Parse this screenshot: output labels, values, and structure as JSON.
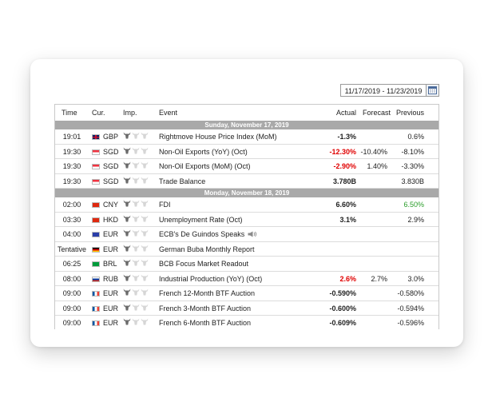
{
  "date_range": "11/17/2019 - 11/23/2019",
  "columns": {
    "time": "Time",
    "currency": "Cur.",
    "importance": "Imp.",
    "event": "Event",
    "actual": "Actual",
    "forecast": "Forecast",
    "previous": "Previous"
  },
  "days": [
    {
      "label": "Sunday, November 17, 2019",
      "rows": [
        {
          "time": "19:01",
          "flag": "gb",
          "currency": "GBP",
          "importance": 1,
          "event": "Rightmove House Price Index (MoM)",
          "actual": "-1.3%",
          "actual_color": "default",
          "forecast": "",
          "previous": "0.6%",
          "previous_color": "default"
        },
        {
          "time": "19:30",
          "flag": "sg",
          "currency": "SGD",
          "importance": 1,
          "event": "Non-Oil Exports (YoY) (Oct)",
          "actual": "-12.30%",
          "actual_color": "red",
          "forecast": "-10.40%",
          "previous": "-8.10%",
          "previous_color": "default"
        },
        {
          "time": "19:30",
          "flag": "sg",
          "currency": "SGD",
          "importance": 1,
          "event": "Non-Oil Exports (MoM) (Oct)",
          "actual": "-2.90%",
          "actual_color": "red",
          "forecast": "1.40%",
          "previous": "-3.30%",
          "previous_color": "default"
        },
        {
          "time": "19:30",
          "flag": "sg",
          "currency": "SGD",
          "importance": 1,
          "event": "Trade Balance",
          "actual": "3.780B",
          "actual_color": "default",
          "forecast": "",
          "previous": "3.830B",
          "previous_color": "default"
        }
      ]
    },
    {
      "label": "Monday, November 18, 2019",
      "rows": [
        {
          "time": "02:00",
          "flag": "cn",
          "currency": "CNY",
          "importance": 1,
          "event": "FDI",
          "actual": "6.60%",
          "actual_color": "default",
          "forecast": "",
          "previous": "6.50%",
          "previous_color": "green"
        },
        {
          "time": "03:30",
          "flag": "hk",
          "currency": "HKD",
          "importance": 1,
          "event": "Unemployment Rate (Oct)",
          "actual": "3.1%",
          "actual_color": "default",
          "forecast": "",
          "previous": "2.9%",
          "previous_color": "default"
        },
        {
          "time": "04:00",
          "flag": "eu",
          "currency": "EUR",
          "importance": 1,
          "event": "ECB's De Guindos Speaks",
          "speaker": true,
          "actual": "",
          "actual_color": "default",
          "forecast": "",
          "previous": "",
          "previous_color": "default"
        },
        {
          "time": "Tentative",
          "flag": "de",
          "currency": "EUR",
          "importance": 1,
          "event": "German Buba Monthly Report",
          "actual": "",
          "actual_color": "default",
          "forecast": "",
          "previous": "",
          "previous_color": "default"
        },
        {
          "time": "06:25",
          "flag": "br",
          "currency": "BRL",
          "importance": 1,
          "event": "BCB Focus Market Readout",
          "actual": "",
          "actual_color": "default",
          "forecast": "",
          "previous": "",
          "previous_color": "default"
        },
        {
          "time": "08:00",
          "flag": "ru",
          "currency": "RUB",
          "importance": 1,
          "event": "Industrial Production (YoY) (Oct)",
          "actual": "2.6%",
          "actual_color": "red",
          "forecast": "2.7%",
          "previous": "3.0%",
          "previous_color": "default"
        },
        {
          "time": "09:00",
          "flag": "fr",
          "currency": "EUR",
          "importance": 1,
          "event": "French 12-Month BTF Auction",
          "actual": "-0.590%",
          "actual_color": "default",
          "forecast": "",
          "previous": "-0.580%",
          "previous_color": "default"
        },
        {
          "time": "09:00",
          "flag": "fr",
          "currency": "EUR",
          "importance": 1,
          "event": "French 3-Month BTF Auction",
          "actual": "-0.600%",
          "actual_color": "default",
          "forecast": "",
          "previous": "-0.594%",
          "previous_color": "default"
        },
        {
          "time": "09:00",
          "flag": "fr",
          "currency": "EUR",
          "importance": 1,
          "event": "French 6-Month BTF Auction",
          "actual": "-0.609%",
          "actual_color": "default",
          "forecast": "",
          "previous": "-0.596%",
          "previous_color": "default"
        }
      ]
    }
  ],
  "colors": {
    "red": "#e00000",
    "green": "#2a9d2a",
    "separator": "#a9a9a9"
  },
  "icons": {
    "importance": "bull-icon",
    "calendar": "calendar-icon",
    "speaker": "speaker-icon"
  }
}
